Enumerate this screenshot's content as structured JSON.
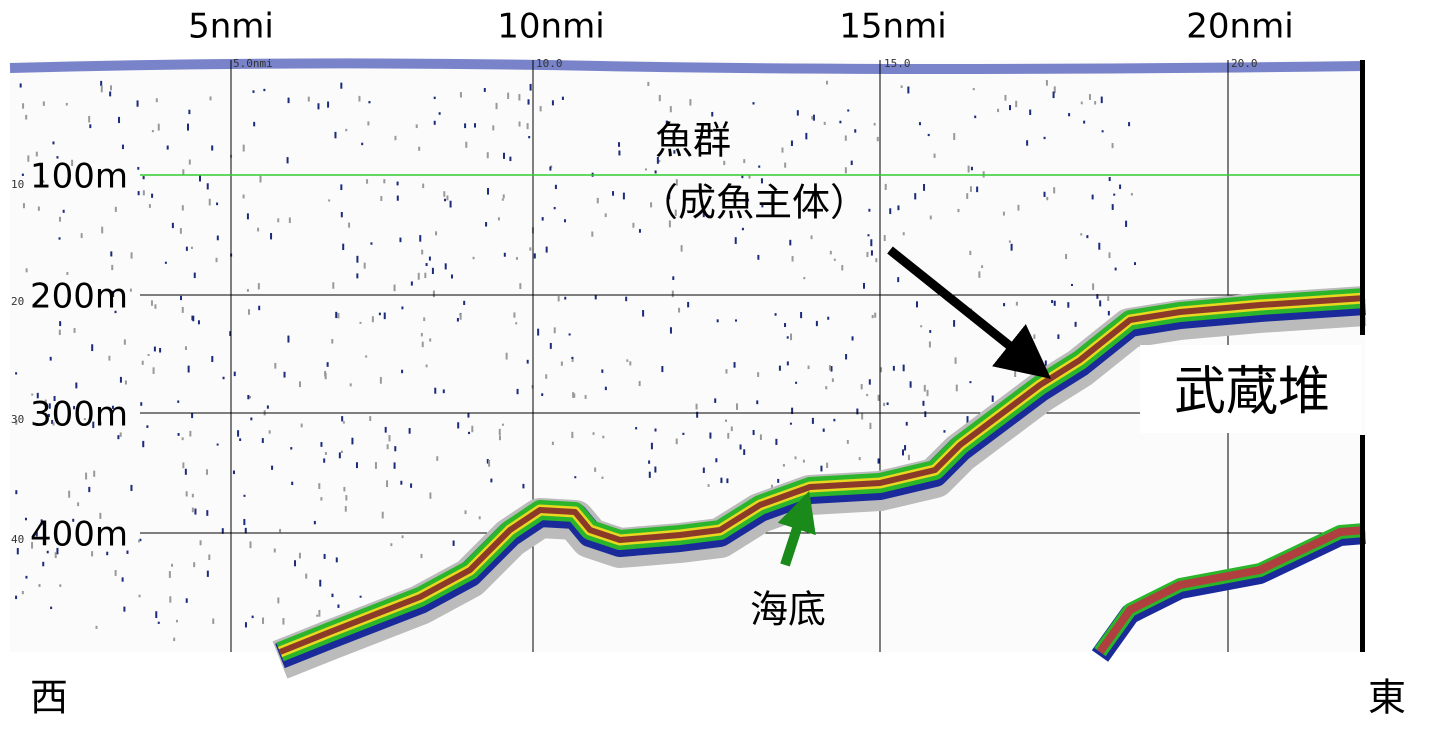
{
  "axis_top": {
    "labels": [
      "5nmi",
      "10nmi",
      "15nmi",
      "20nmi"
    ]
  },
  "axis_left": {
    "labels": [
      "100m",
      "200m",
      "300m",
      "400m"
    ]
  },
  "image_labels": {
    "top": [
      "5.0nmi",
      "10.0",
      "15.0",
      "20.0"
    ],
    "left": [
      "10",
      "20",
      "30",
      "40"
    ]
  },
  "annotations": {
    "fish_school": "魚群",
    "fish_school_note": "（成魚主体）",
    "seafloor": "海底",
    "bank": "武蔵堆"
  },
  "direction": {
    "west": "西",
    "east": "東"
  }
}
